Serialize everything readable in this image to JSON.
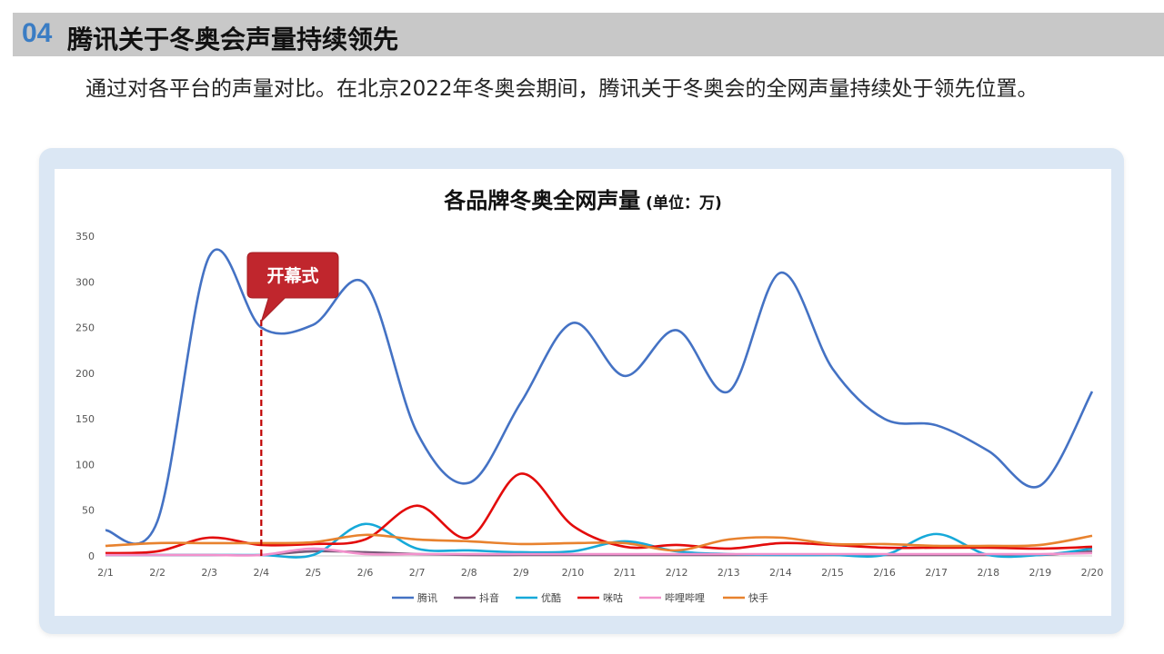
{
  "header": {
    "number": "04",
    "title": "腾讯关于冬奥会声量持续领先"
  },
  "intro_text": "通过对各平台的声量对比。在北京2022年冬奥会期间，腾讯关于冬奥会的全网声量持续处于领先位置。",
  "chart_data": {
    "type": "line",
    "title": "各品牌冬奥全网声量",
    "unit": "(单位：万)",
    "categories": [
      "2/1",
      "2/2",
      "2/3",
      "2/4",
      "2/5",
      "2/6",
      "2/7",
      "2/8",
      "2/9",
      "2/10",
      "2/11",
      "2/12",
      "2/13",
      "2/14",
      "2/15",
      "2/16",
      "2/17",
      "2/18",
      "2/19",
      "2/20"
    ],
    "ylim": [
      0,
      350
    ],
    "yticks": [
      "0",
      "50",
      "100",
      "150",
      "200",
      "250",
      "300",
      "350"
    ],
    "series": [
      {
        "name": "腾讯",
        "color": "#4472c4",
        "values": [
          28,
          38,
          328,
          250,
          253,
          298,
          135,
          80,
          168,
          255,
          197,
          247,
          180,
          310,
          205,
          150,
          143,
          115,
          77,
          180
        ]
      },
      {
        "name": "抖音",
        "color": "#7b5a7a",
        "values": [
          1,
          1,
          1,
          1,
          5,
          4,
          2,
          1,
          1,
          1,
          1,
          1,
          1,
          1,
          1,
          1,
          1,
          1,
          1,
          5
        ]
      },
      {
        "name": "优酷",
        "color": "#16a9d9",
        "values": [
          1,
          1,
          1,
          1,
          1,
          35,
          8,
          6,
          4,
          5,
          16,
          5,
          2,
          1,
          1,
          1,
          24,
          1,
          1,
          8
        ]
      },
      {
        "name": "咪咕",
        "color": "#e30b0b",
        "values": [
          3,
          5,
          20,
          12,
          13,
          18,
          55,
          20,
          90,
          33,
          10,
          12,
          8,
          14,
          12,
          9,
          9,
          9,
          8,
          10
        ]
      },
      {
        "name": "哔哩哔哩",
        "color": "#f291cc",
        "values": [
          1,
          1,
          1,
          1,
          8,
          2,
          2,
          2,
          2,
          2,
          2,
          2,
          2,
          2,
          2,
          2,
          2,
          2,
          2,
          3
        ]
      },
      {
        "name": "快手",
        "color": "#e8822e",
        "values": [
          11,
          14,
          14,
          14,
          15,
          23,
          18,
          16,
          13,
          14,
          14,
          6,
          18,
          20,
          13,
          13,
          11,
          11,
          12,
          22
        ]
      }
    ],
    "annotation": {
      "label": "开幕式",
      "category": "2/4"
    }
  }
}
